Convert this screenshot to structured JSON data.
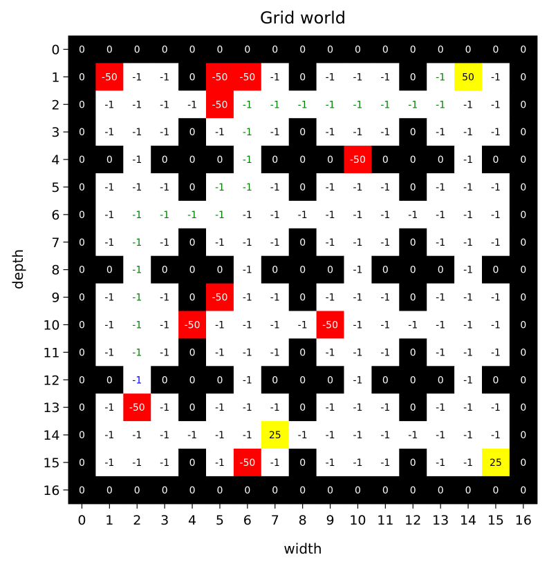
{
  "chart_data": {
    "type": "heatmap",
    "title": "Grid world",
    "xlabel": "width",
    "ylabel": "depth",
    "x_ticks": [
      0,
      1,
      2,
      3,
      4,
      5,
      6,
      7,
      8,
      9,
      10,
      11,
      12,
      13,
      14,
      15,
      16
    ],
    "y_ticks": [
      0,
      1,
      2,
      3,
      4,
      5,
      6,
      7,
      8,
      9,
      10,
      11,
      12,
      13,
      14,
      15,
      16
    ],
    "colors": {
      "wall": "#000000",
      "open": "#ffffff",
      "penalty": "#ff0000",
      "goal": "#ffff00",
      "path_text": "#008000",
      "agent_text": "#0000ff"
    },
    "grid": [
      [
        0,
        0,
        0,
        0,
        0,
        0,
        0,
        0,
        0,
        0,
        0,
        0,
        0,
        0,
        0,
        0,
        0
      ],
      [
        0,
        -50,
        -1,
        -1,
        0,
        -50,
        -50,
        -1,
        0,
        -1,
        -1,
        -1,
        0,
        -1,
        50,
        -1,
        0
      ],
      [
        0,
        -1,
        -1,
        -1,
        -1,
        -50,
        -1,
        -1,
        -1,
        -1,
        -1,
        -1,
        -1,
        -1,
        -1,
        -1,
        0
      ],
      [
        0,
        -1,
        -1,
        -1,
        0,
        -1,
        -1,
        -1,
        0,
        -1,
        -1,
        -1,
        0,
        -1,
        -1,
        -1,
        0
      ],
      [
        0,
        0,
        -1,
        0,
        0,
        0,
        -1,
        0,
        0,
        0,
        -50,
        0,
        0,
        0,
        -1,
        0,
        0
      ],
      [
        0,
        -1,
        -1,
        -1,
        0,
        -1,
        -1,
        -1,
        0,
        -1,
        -1,
        -1,
        0,
        -1,
        -1,
        -1,
        0
      ],
      [
        0,
        -1,
        -1,
        -1,
        -1,
        -1,
        -1,
        -1,
        -1,
        -1,
        -1,
        -1,
        -1,
        -1,
        -1,
        -1,
        0
      ],
      [
        0,
        -1,
        -1,
        -1,
        0,
        -1,
        -1,
        -1,
        0,
        -1,
        -1,
        -1,
        0,
        -1,
        -1,
        -1,
        0
      ],
      [
        0,
        0,
        -1,
        0,
        0,
        0,
        -1,
        0,
        0,
        0,
        -1,
        0,
        0,
        0,
        -1,
        0,
        0
      ],
      [
        0,
        -1,
        -1,
        -1,
        0,
        -50,
        -1,
        -1,
        0,
        -1,
        -1,
        -1,
        0,
        -1,
        -1,
        -1,
        0
      ],
      [
        0,
        -1,
        -1,
        -1,
        -50,
        -1,
        -1,
        -1,
        -1,
        -50,
        -1,
        -1,
        -1,
        -1,
        -1,
        -1,
        0
      ],
      [
        0,
        -1,
        -1,
        -1,
        0,
        -1,
        -1,
        -1,
        0,
        -1,
        -1,
        -1,
        0,
        -1,
        -1,
        -1,
        0
      ],
      [
        0,
        0,
        -1,
        0,
        0,
        0,
        -1,
        0,
        0,
        0,
        -1,
        0,
        0,
        0,
        -1,
        0,
        0
      ],
      [
        0,
        -1,
        -50,
        -1,
        0,
        -1,
        -1,
        -1,
        0,
        -1,
        -1,
        -1,
        0,
        -1,
        -1,
        -1,
        0
      ],
      [
        0,
        -1,
        -1,
        -1,
        -1,
        -1,
        -1,
        25,
        -1,
        -1,
        -1,
        -1,
        -1,
        -1,
        -1,
        -1,
        0
      ],
      [
        0,
        -1,
        -1,
        -1,
        0,
        -1,
        -50,
        -1,
        0,
        -1,
        -1,
        -1,
        0,
        -1,
        -1,
        25,
        0
      ],
      [
        0,
        0,
        0,
        0,
        0,
        0,
        0,
        0,
        0,
        0,
        0,
        0,
        0,
        0,
        0,
        0,
        0
      ]
    ],
    "path_cells": [
      [
        1,
        13
      ],
      [
        2,
        6
      ],
      [
        2,
        7
      ],
      [
        2,
        8
      ],
      [
        2,
        9
      ],
      [
        2,
        10
      ],
      [
        2,
        11
      ],
      [
        2,
        12
      ],
      [
        2,
        13
      ],
      [
        3,
        6
      ],
      [
        4,
        6
      ],
      [
        5,
        5
      ],
      [
        5,
        6
      ],
      [
        6,
        2
      ],
      [
        6,
        3
      ],
      [
        6,
        4
      ],
      [
        6,
        5
      ],
      [
        7,
        2
      ],
      [
        8,
        2
      ],
      [
        9,
        2
      ],
      [
        10,
        2
      ],
      [
        11,
        2
      ]
    ],
    "agent_cell": [
      12,
      2
    ]
  }
}
